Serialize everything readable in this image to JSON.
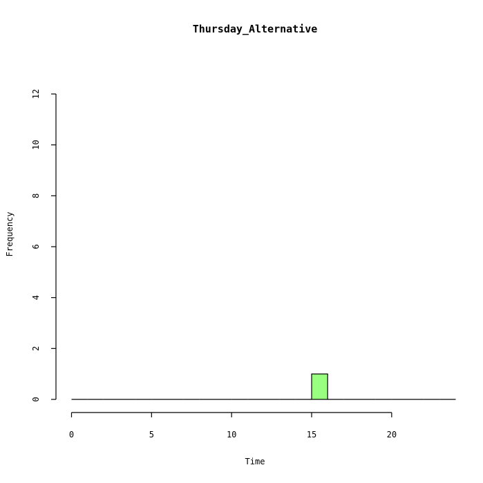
{
  "chart_data": {
    "type": "bar",
    "title": "Thursday_Alternative",
    "xlabel": "Time",
    "ylabel": "Frequency",
    "xlim": [
      0,
      24
    ],
    "ylim": [
      0,
      12
    ],
    "x_ticks": [
      0,
      5,
      10,
      15,
      20
    ],
    "y_ticks": [
      0,
      2,
      4,
      6,
      8,
      10,
      12
    ],
    "bins": [
      {
        "start": 0,
        "end": 1,
        "value": 0
      },
      {
        "start": 1,
        "end": 2,
        "value": 0
      },
      {
        "start": 2,
        "end": 3,
        "value": 0
      },
      {
        "start": 3,
        "end": 4,
        "value": 0
      },
      {
        "start": 4,
        "end": 5,
        "value": 0
      },
      {
        "start": 5,
        "end": 6,
        "value": 0
      },
      {
        "start": 6,
        "end": 7,
        "value": 0
      },
      {
        "start": 7,
        "end": 8,
        "value": 0
      },
      {
        "start": 8,
        "end": 9,
        "value": 0
      },
      {
        "start": 9,
        "end": 10,
        "value": 0
      },
      {
        "start": 10,
        "end": 11,
        "value": 0
      },
      {
        "start": 11,
        "end": 12,
        "value": 0
      },
      {
        "start": 12,
        "end": 13,
        "value": 0
      },
      {
        "start": 13,
        "end": 14,
        "value": 0
      },
      {
        "start": 14,
        "end": 15,
        "value": 0
      },
      {
        "start": 15,
        "end": 16,
        "value": 1
      },
      {
        "start": 16,
        "end": 17,
        "value": 0
      },
      {
        "start": 17,
        "end": 18,
        "value": 0
      },
      {
        "start": 18,
        "end": 19,
        "value": 0
      },
      {
        "start": 19,
        "end": 20,
        "value": 0
      },
      {
        "start": 20,
        "end": 21,
        "value": 0
      },
      {
        "start": 21,
        "end": 22,
        "value": 0
      },
      {
        "start": 22,
        "end": 23,
        "value": 0
      },
      {
        "start": 23,
        "end": 24,
        "value": 0
      }
    ],
    "bar_color": "#99ff80",
    "grid": false,
    "legend": "none"
  }
}
